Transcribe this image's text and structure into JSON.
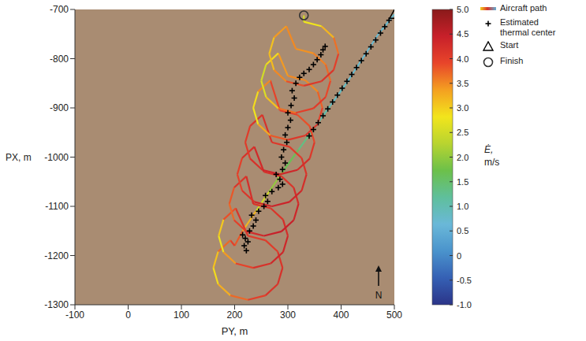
{
  "chart_data": {
    "type": "scatter",
    "xlabel": "PY, m",
    "ylabel": "PX, m",
    "xlim": [
      -100,
      500
    ],
    "xticks": [
      -100,
      0,
      100,
      200,
      300,
      400,
      500
    ],
    "ylim": [
      -1300,
      -700
    ],
    "yticks": [
      -1300,
      -1200,
      -1100,
      -1000,
      -900,
      -800,
      -700
    ],
    "grid": false,
    "legend": "right",
    "annotations": [
      {
        "text": "N"
      }
    ],
    "colorbar": {
      "label": "Ė, m/s",
      "range": [
        -1,
        5
      ],
      "ticks": [
        {
          "value": -1,
          "label": "-1.0"
        },
        -0.5,
        0,
        0.5,
        {
          "value": 1,
          "label": "1.0"
        },
        1.5,
        {
          "value": 2,
          "label": "2.0"
        },
        2.5,
        {
          "value": 3,
          "label": "3.0"
        },
        3.5,
        {
          "value": 4,
          "label": "4.0"
        },
        4.5,
        {
          "value": 5,
          "label": "5.0"
        }
      ]
    },
    "series": [
      {
        "name": "Aircraft path",
        "type": "line",
        "marker": "none",
        "x": [
          500,
          470,
          440,
          410,
          380,
          350,
          320,
          290,
          265,
          240,
          215,
          200,
          192,
          169,
          160,
          169,
          192,
          225,
          258,
          281,
          290,
          281,
          258,
          225,
          202,
          179,
          170,
          179,
          202,
          235,
          268,
          291,
          300,
          291,
          268,
          235,
          222,
          199,
          190,
          199,
          222,
          255,
          288,
          311,
          320,
          311,
          288,
          255,
          237,
          214,
          205,
          214,
          237,
          270,
          303,
          326,
          335,
          326,
          303,
          270,
          252,
          229,
          220,
          229,
          252,
          285,
          318,
          341,
          350,
          341,
          318,
          285,
          267,
          244,
          235,
          244,
          267,
          300,
          333,
          356,
          365,
          356,
          333,
          300,
          282,
          259,
          250,
          259,
          282,
          315,
          348,
          371,
          380,
          371,
          348,
          315,
          297,
          274,
          265,
          274,
          297,
          330,
          363,
          386,
          395,
          386,
          363,
          330,
          330
        ],
        "y": [
          -710,
          -750,
          -800,
          -850,
          -895,
          -940,
          -985,
          -1030,
          -1070,
          -1110,
          -1150,
          -1180,
          -1169,
          -1192,
          -1225,
          -1258,
          -1281,
          -1290,
          -1281,
          -1258,
          -1225,
          -1192,
          -1169,
          -1160,
          -1104,
          -1127,
          -1160,
          -1193,
          -1216,
          -1225,
          -1216,
          -1193,
          -1160,
          -1127,
          -1104,
          -1095,
          -1039,
          -1062,
          -1095,
          -1128,
          -1151,
          -1160,
          -1151,
          -1128,
          -1095,
          -1062,
          -1039,
          -1030,
          -979,
          -1002,
          -1035,
          -1068,
          -1091,
          -1100,
          -1091,
          -1068,
          -1035,
          -1002,
          -979,
          -970,
          -914,
          -937,
          -970,
          -1003,
          -1026,
          -1035,
          -1026,
          -1003,
          -970,
          -937,
          -914,
          -905,
          -844,
          -867,
          -900,
          -933,
          -956,
          -965,
          -956,
          -933,
          -900,
          -867,
          -844,
          -835,
          -789,
          -812,
          -845,
          -878,
          -901,
          -910,
          -901,
          -878,
          -845,
          -812,
          -789,
          -780,
          -734,
          -757,
          -790,
          -823,
          -846,
          -855,
          -846,
          -823,
          -790,
          -757,
          -734,
          -725,
          -712
        ],
        "color_values": [
          0.8,
          0.7,
          0.7,
          0.8,
          0.9,
          1.2,
          1.5,
          1.8,
          2.2,
          2.8,
          3.6,
          4.0,
          4.0,
          3.4,
          2.8,
          3.0,
          3.5,
          3.9,
          4.1,
          4.2,
          4.2,
          4.1,
          4.0,
          4.1,
          4.2,
          3.5,
          2.6,
          3.0,
          3.8,
          4.1,
          4.3,
          4.4,
          4.3,
          4.2,
          4.1,
          4.2,
          4.3,
          4.0,
          3.6,
          3.8,
          4.2,
          4.4,
          4.5,
          4.4,
          4.3,
          4.2,
          4.1,
          4.3,
          4.3,
          4.1,
          3.9,
          4.0,
          4.3,
          4.4,
          4.4,
          4.3,
          4.2,
          4.1,
          4.0,
          4.2,
          4.2,
          4.1,
          4.0,
          4.1,
          4.3,
          4.4,
          4.3,
          4.2,
          4.0,
          3.8,
          3.9,
          4.1,
          3.8,
          3.2,
          2.6,
          3.0,
          3.6,
          4.0,
          4.2,
          4.1,
          3.9,
          3.6,
          3.4,
          3.6,
          3.2,
          2.6,
          2.4,
          2.8,
          3.4,
          3.9,
          4.1,
          4.0,
          3.8,
          3.6,
          3.5,
          3.4,
          3.6,
          3.2,
          3.0,
          3.3,
          3.7,
          4.0,
          4.2,
          4.1,
          3.9,
          3.4,
          3.0,
          2.6,
          2.4
        ]
      },
      {
        "name": "Estimated thermal center",
        "type": "scatter",
        "marker": "plus",
        "color": "#000000",
        "x": [
          490,
          482,
          474,
          465,
          456,
          447,
          438,
          429,
          420,
          411,
          402,
          393,
          384,
          375,
          366,
          357,
          348,
          340,
          222,
          218,
          225,
          220,
          215,
          228,
          235,
          240,
          232,
          245,
          255,
          262,
          258,
          270,
          282,
          290,
          285,
          278,
          290,
          295,
          288,
          292,
          298,
          295,
          300,
          305,
          300,
          306,
          312,
          308,
          315,
          322,
          330,
          340,
          348,
          355,
          362,
          366,
          370
        ],
        "y": [
          -722,
          -735,
          -748,
          -762,
          -776,
          -790,
          -804,
          -818,
          -832,
          -846,
          -860,
          -874,
          -888,
          -902,
          -916,
          -930,
          -944,
          -957,
          -1190,
          -1180,
          -1172,
          -1165,
          -1158,
          -1150,
          -1140,
          -1128,
          -1118,
          -1110,
          -1100,
          -1090,
          -1078,
          -1070,
          -1062,
          -1055,
          -1045,
          -1035,
          -1025,
          -1012,
          -1000,
          -985,
          -970,
          -955,
          -940,
          -925,
          -910,
          -895,
          -880,
          -865,
          -850,
          -838,
          -830,
          -822,
          -812,
          -802,
          -792,
          -782,
          -775
        ]
      },
      {
        "name": "Start",
        "type": "scatter",
        "marker": "triangle",
        "color": "#000000",
        "x": [
          500
        ],
        "y": [
          -710
        ]
      },
      {
        "name": "Finish",
        "type": "scatter",
        "marker": "circle",
        "color": "#333333",
        "x": [
          330
        ],
        "y": [
          -712
        ]
      }
    ]
  }
}
